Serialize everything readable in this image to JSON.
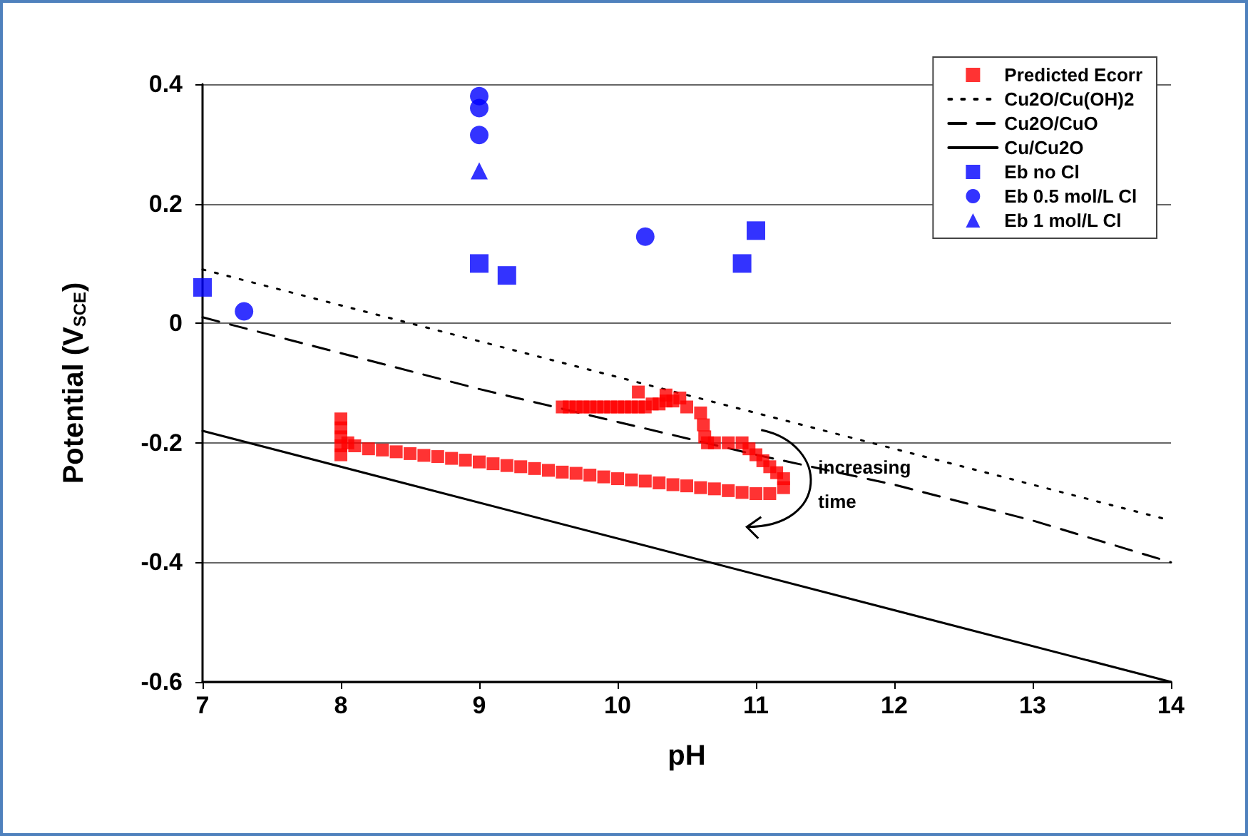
{
  "chart_data": {
    "type": "scatter",
    "xlabel": "pH",
    "ylabel": "Potential (V$_{SCE}$)",
    "xlim": [
      7,
      14
    ],
    "xticks": [
      7,
      8,
      9,
      10,
      11,
      12,
      13,
      14
    ],
    "ylim": [
      -0.6,
      0.4
    ],
    "yticks": [
      -0.6,
      -0.4,
      -0.2,
      0,
      0.2,
      0.4
    ],
    "grid": "y",
    "legend": "top right",
    "annotations": [
      {
        "text": "increasing time",
        "x": 11.45,
        "y": -0.25
      }
    ],
    "series": [
      {
        "name": "Predicted Ecorr",
        "marker": "square",
        "color": "#ff0000",
        "x": [
          9.6,
          9.65,
          9.7,
          9.75,
          9.8,
          9.85,
          9.9,
          9.95,
          10.0,
          10.05,
          10.1,
          10.15,
          10.2,
          10.25,
          10.3,
          10.35,
          10.4,
          10.15,
          10.35,
          10.45,
          10.5,
          10.6,
          10.62,
          10.63,
          10.65,
          10.7,
          10.8,
          10.9,
          10.95,
          11.0,
          11.05,
          11.1,
          11.15,
          11.2,
          11.2,
          11.1,
          11.0,
          10.9,
          10.8,
          10.7,
          10.6,
          10.5,
          10.4,
          10.3,
          10.2,
          10.1,
          10.0,
          9.9,
          9.8,
          9.7,
          9.6,
          9.5,
          9.4,
          9.3,
          9.2,
          9.1,
          9.0,
          8.9,
          8.8,
          8.7,
          8.6,
          8.5,
          8.4,
          8.3,
          8.2,
          8.1,
          8.05,
          8.0,
          8.0,
          8.0,
          8.0,
          8.0
        ],
        "values": [
          -0.14,
          -0.14,
          -0.14,
          -0.14,
          -0.14,
          -0.14,
          -0.14,
          -0.14,
          -0.14,
          -0.14,
          -0.14,
          -0.14,
          -0.14,
          -0.135,
          -0.135,
          -0.13,
          -0.13,
          -0.115,
          -0.12,
          -0.125,
          -0.14,
          -0.15,
          -0.17,
          -0.19,
          -0.2,
          -0.2,
          -0.2,
          -0.2,
          -0.21,
          -0.22,
          -0.23,
          -0.24,
          -0.25,
          -0.26,
          -0.275,
          -0.285,
          -0.285,
          -0.283,
          -0.28,
          -0.277,
          -0.275,
          -0.272,
          -0.27,
          -0.267,
          -0.264,
          -0.262,
          -0.26,
          -0.257,
          -0.254,
          -0.251,
          -0.249,
          -0.246,
          -0.243,
          -0.24,
          -0.238,
          -0.235,
          -0.232,
          -0.229,
          -0.226,
          -0.223,
          -0.221,
          -0.218,
          -0.215,
          -0.212,
          -0.21,
          -0.205,
          -0.2,
          -0.16,
          -0.175,
          -0.19,
          -0.205,
          -0.22
        ]
      },
      {
        "name": "Cu2O/Cu(OH)2",
        "type": "line",
        "line_style": "dotted",
        "color": "#000000",
        "x": [
          7,
          14
        ],
        "values": [
          0.09,
          -0.33
        ]
      },
      {
        "name": "Cu2O/CuO",
        "type": "line",
        "line_style": "dashed",
        "color": "#000000",
        "x": [
          7,
          9,
          11,
          12,
          13,
          14
        ],
        "values": [
          0.01,
          -0.11,
          -0.22,
          -0.27,
          -0.33,
          -0.4
        ]
      },
      {
        "name": "Cu/Cu2O",
        "type": "line",
        "line_style": "solid",
        "color": "#000000",
        "x": [
          7,
          14
        ],
        "values": [
          -0.18,
          -0.6
        ]
      },
      {
        "name": "Eb no Cl",
        "marker": "square",
        "color": "#0000ff",
        "x": [
          7,
          9,
          9.2,
          10.9,
          11
        ],
        "values": [
          0.06,
          0.1,
          0.08,
          0.1,
          0.155
        ]
      },
      {
        "name": "Eb 0.5 mol/L Cl",
        "marker": "circle",
        "color": "#0000ff",
        "x": [
          7.3,
          9,
          9,
          9,
          10.2
        ],
        "values": [
          0.02,
          0.38,
          0.36,
          0.315,
          0.145
        ]
      },
      {
        "name": "Eb 1 mol/L Cl",
        "marker": "triangle",
        "color": "#0000ff",
        "x": [
          9
        ],
        "values": [
          0.255
        ]
      }
    ]
  }
}
